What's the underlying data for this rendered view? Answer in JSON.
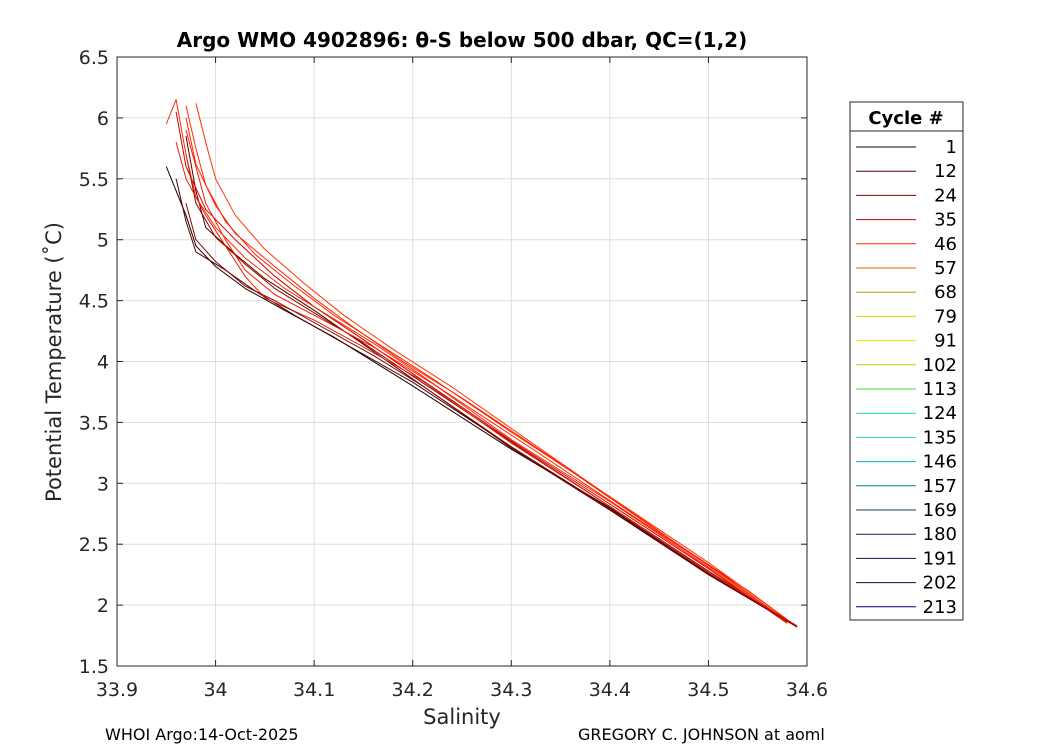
{
  "chart_data": {
    "type": "line",
    "title": "Argo WMO 4902896: θ-S below 500 dbar,  QC=(1,2)",
    "xlabel": "Salinity",
    "ylabel": "Potential Temperature (˚C)",
    "xlim": [
      33.9,
      34.6
    ],
    "ylim": [
      1.5,
      6.5
    ],
    "xticks": [
      33.9,
      34,
      34.1,
      34.2,
      34.3,
      34.4,
      34.5,
      34.6
    ],
    "xtick_labels": [
      "33.9",
      "34",
      "34.1",
      "34.2",
      "34.3",
      "34.4",
      "34.5",
      "34.6"
    ],
    "yticks": [
      1.5,
      2,
      2.5,
      3,
      3.5,
      4,
      4.5,
      5,
      5.5,
      6,
      6.5
    ],
    "ytick_labels": [
      "1.5",
      "2",
      "2.5",
      "3",
      "3.5",
      "4",
      "4.5",
      "5",
      "5.5",
      "6",
      "6.5"
    ],
    "grid": true,
    "legend": {
      "title": "Cycle #",
      "placement": "right",
      "entries": [
        {
          "label": "1",
          "color": "#1a0000"
        },
        {
          "label": "12",
          "color": "#4d0000"
        },
        {
          "label": "24",
          "color": "#8c0000"
        },
        {
          "label": "35",
          "color": "#cc0000"
        },
        {
          "label": "46",
          "color": "#ff2a00"
        },
        {
          "label": "57",
          "color": "#e06000"
        },
        {
          "label": "68",
          "color": "#c89600"
        },
        {
          "label": "79",
          "color": "#d6d600"
        },
        {
          "label": "91",
          "color": "#e4e400"
        },
        {
          "label": "102",
          "color": "#a8e000"
        },
        {
          "label": "113",
          "color": "#40e040"
        },
        {
          "label": "124",
          "color": "#20e0a0"
        },
        {
          "label": "135",
          "color": "#20d0d0"
        },
        {
          "label": "146",
          "color": "#00b4c8"
        },
        {
          "label": "157",
          "color": "#008080"
        },
        {
          "label": "169",
          "color": "#104060"
        },
        {
          "label": "180",
          "color": "#102050"
        },
        {
          "label": "191",
          "color": "#101040"
        },
        {
          "label": "202",
          "color": "#0c0c30"
        },
        {
          "label": "213",
          "color": "#000080"
        }
      ]
    },
    "series": [
      {
        "color": "#1a0000",
        "points": [
          [
            33.95,
            5.6
          ],
          [
            33.97,
            5.2
          ],
          [
            33.98,
            4.95
          ],
          [
            34.0,
            4.78
          ],
          [
            34.03,
            4.6
          ],
          [
            34.07,
            4.42
          ],
          [
            34.12,
            4.2
          ],
          [
            34.2,
            3.8
          ],
          [
            34.3,
            3.28
          ],
          [
            34.4,
            2.8
          ],
          [
            34.5,
            2.26
          ],
          [
            34.59,
            1.82
          ]
        ]
      },
      {
        "color": "#4d0000",
        "points": [
          [
            33.96,
            5.5
          ],
          [
            33.97,
            5.15
          ],
          [
            33.98,
            4.9
          ],
          [
            34.01,
            4.75
          ],
          [
            34.04,
            4.58
          ],
          [
            34.08,
            4.38
          ],
          [
            34.13,
            4.15
          ],
          [
            34.2,
            3.83
          ],
          [
            34.3,
            3.3
          ],
          [
            34.4,
            2.79
          ],
          [
            34.5,
            2.25
          ],
          [
            34.59,
            1.82
          ]
        ]
      },
      {
        "color": "#4d0000",
        "points": [
          [
            33.97,
            5.85
          ],
          [
            33.98,
            5.4
          ],
          [
            33.99,
            5.1
          ],
          [
            34.02,
            4.88
          ],
          [
            34.05,
            4.68
          ],
          [
            34.1,
            4.42
          ],
          [
            34.15,
            4.14
          ],
          [
            34.21,
            3.8
          ],
          [
            34.3,
            3.29
          ],
          [
            34.4,
            2.78
          ],
          [
            34.5,
            2.25
          ],
          [
            34.59,
            1.82
          ]
        ]
      },
      {
        "color": "#8c0000",
        "points": [
          [
            33.97,
            5.7
          ],
          [
            33.98,
            5.3
          ],
          [
            34.0,
            5.02
          ],
          [
            34.03,
            4.8
          ],
          [
            34.06,
            4.6
          ],
          [
            34.1,
            4.4
          ],
          [
            34.15,
            4.15
          ],
          [
            34.2,
            3.88
          ],
          [
            34.3,
            3.34
          ],
          [
            34.4,
            2.81
          ],
          [
            34.5,
            2.28
          ],
          [
            34.59,
            1.82
          ]
        ]
      },
      {
        "color": "#cc0000",
        "points": [
          [
            33.96,
            6.05
          ],
          [
            33.97,
            5.6
          ],
          [
            33.99,
            5.25
          ],
          [
            34.02,
            5.0
          ],
          [
            34.06,
            4.7
          ],
          [
            34.1,
            4.45
          ],
          [
            34.15,
            4.18
          ],
          [
            34.2,
            3.9
          ],
          [
            34.3,
            3.35
          ],
          [
            34.4,
            2.83
          ],
          [
            34.5,
            2.3
          ],
          [
            34.58,
            1.85
          ]
        ]
      },
      {
        "color": "#ff2a00",
        "points": [
          [
            33.95,
            5.95
          ],
          [
            33.96,
            6.15
          ],
          [
            33.97,
            5.7
          ],
          [
            33.98,
            5.35
          ],
          [
            34.0,
            5.1
          ],
          [
            34.03,
            4.85
          ],
          [
            34.07,
            4.6
          ],
          [
            34.11,
            4.4
          ],
          [
            34.16,
            4.15
          ],
          [
            34.21,
            3.88
          ],
          [
            34.3,
            3.36
          ],
          [
            34.4,
            2.85
          ],
          [
            34.5,
            2.31
          ],
          [
            34.58,
            1.86
          ]
        ]
      },
      {
        "color": "#ff2a00",
        "points": [
          [
            33.97,
            6.1
          ],
          [
            33.98,
            5.75
          ],
          [
            33.99,
            5.45
          ],
          [
            34.01,
            5.15
          ],
          [
            34.04,
            4.88
          ],
          [
            34.08,
            4.62
          ],
          [
            34.12,
            4.38
          ],
          [
            34.17,
            4.12
          ],
          [
            34.22,
            3.86
          ],
          [
            34.3,
            3.42
          ],
          [
            34.4,
            2.89
          ],
          [
            34.5,
            2.35
          ],
          [
            34.58,
            1.88
          ]
        ]
      },
      {
        "color": "#ff3300",
        "points": [
          [
            33.98,
            6.12
          ],
          [
            33.99,
            5.8
          ],
          [
            34.0,
            5.5
          ],
          [
            34.02,
            5.2
          ],
          [
            34.05,
            4.92
          ],
          [
            34.09,
            4.64
          ],
          [
            34.13,
            4.38
          ],
          [
            34.18,
            4.1
          ],
          [
            34.24,
            3.79
          ],
          [
            34.33,
            3.28
          ],
          [
            34.43,
            2.72
          ],
          [
            34.52,
            2.21
          ],
          [
            34.58,
            1.87
          ]
        ]
      },
      {
        "color": "#ff1a00",
        "points": [
          [
            33.97,
            5.9
          ],
          [
            33.98,
            5.6
          ],
          [
            33.99,
            5.3
          ],
          [
            34.01,
            5.0
          ],
          [
            34.03,
            4.75
          ],
          [
            34.06,
            4.55
          ],
          [
            34.1,
            4.38
          ],
          [
            34.16,
            4.12
          ],
          [
            34.22,
            3.82
          ],
          [
            34.32,
            3.29
          ],
          [
            34.42,
            2.75
          ],
          [
            34.52,
            2.22
          ],
          [
            34.58,
            1.86
          ]
        ]
      },
      {
        "color": "#e62200",
        "points": [
          [
            33.96,
            5.8
          ],
          [
            33.97,
            5.5
          ],
          [
            33.99,
            5.2
          ],
          [
            34.01,
            4.95
          ],
          [
            34.03,
            4.7
          ],
          [
            34.05,
            4.52
          ],
          [
            34.1,
            4.34
          ],
          [
            34.15,
            4.12
          ],
          [
            34.21,
            3.84
          ],
          [
            34.3,
            3.33
          ],
          [
            34.4,
            2.81
          ],
          [
            34.5,
            2.27
          ],
          [
            34.59,
            1.83
          ]
        ]
      },
      {
        "color": "#ff2200",
        "points": [
          [
            33.97,
            6.0
          ],
          [
            33.98,
            5.62
          ],
          [
            34.0,
            5.28
          ],
          [
            34.02,
            5.05
          ],
          [
            34.06,
            4.78
          ],
          [
            34.1,
            4.52
          ],
          [
            34.14,
            4.28
          ],
          [
            34.19,
            4.0
          ],
          [
            34.25,
            3.7
          ],
          [
            34.35,
            3.16
          ],
          [
            34.45,
            2.6
          ],
          [
            34.54,
            2.12
          ],
          [
            34.58,
            1.88
          ]
        ]
      },
      {
        "color": "#8c0000",
        "points": [
          [
            33.97,
            5.3
          ],
          [
            33.98,
            5.0
          ],
          [
            34.0,
            4.82
          ],
          [
            34.03,
            4.62
          ],
          [
            34.06,
            4.5
          ],
          [
            34.1,
            4.32
          ],
          [
            34.16,
            4.05
          ],
          [
            34.21,
            3.8
          ],
          [
            34.3,
            3.3
          ],
          [
            34.4,
            2.79
          ],
          [
            34.5,
            2.26
          ],
          [
            34.59,
            1.82
          ]
        ]
      }
    ]
  },
  "footer": {
    "left": "WHOI Argo:14-Oct-2025",
    "right": "GREGORY C. JOHNSON at aoml"
  }
}
